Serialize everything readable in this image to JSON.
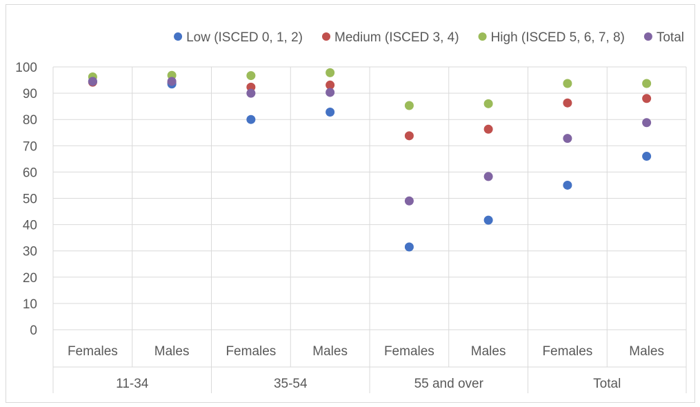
{
  "chart_data": {
    "type": "scatter",
    "groups": [
      {
        "label": "11-34",
        "categories": [
          "Females",
          "Males"
        ]
      },
      {
        "label": "35-54",
        "categories": [
          "Females",
          "Males"
        ]
      },
      {
        "label": "55 and over",
        "categories": [
          "Females",
          "Males"
        ]
      },
      {
        "label": "Total",
        "categories": [
          "Females",
          "Males"
        ]
      }
    ],
    "categories": [
      "Females",
      "Males",
      "Females",
      "Males",
      "Females",
      "Males",
      "Females",
      "Males"
    ],
    "series": [
      {
        "name": "Low (ISCED 0, 1, 2)",
        "color": "#4472c4",
        "values": [
          94.5,
          93.5,
          80,
          82.8,
          31.5,
          41.7,
          55,
          66
        ]
      },
      {
        "name": "Medium (ISCED 3, 4)",
        "color": "#c0504d",
        "values": [
          94.2,
          94,
          92.3,
          93.1,
          73.8,
          76.3,
          86.3,
          88
        ]
      },
      {
        "name": "High (ISCED 5, 6, 7, 8)",
        "color": "#9bbb59",
        "values": [
          96.2,
          96.8,
          96.7,
          97.8,
          85.3,
          86,
          93.7,
          93.7
        ]
      },
      {
        "name": "Total",
        "color": "#8064a2",
        "values": [
          94.5,
          94.5,
          90,
          90.3,
          49,
          58.3,
          72.8,
          78.8
        ]
      }
    ],
    "ylim": [
      0,
      100
    ],
    "yticks": [
      0,
      10,
      20,
      30,
      40,
      50,
      60,
      70,
      80,
      90,
      100
    ],
    "grid": true,
    "legend": "top-right"
  }
}
